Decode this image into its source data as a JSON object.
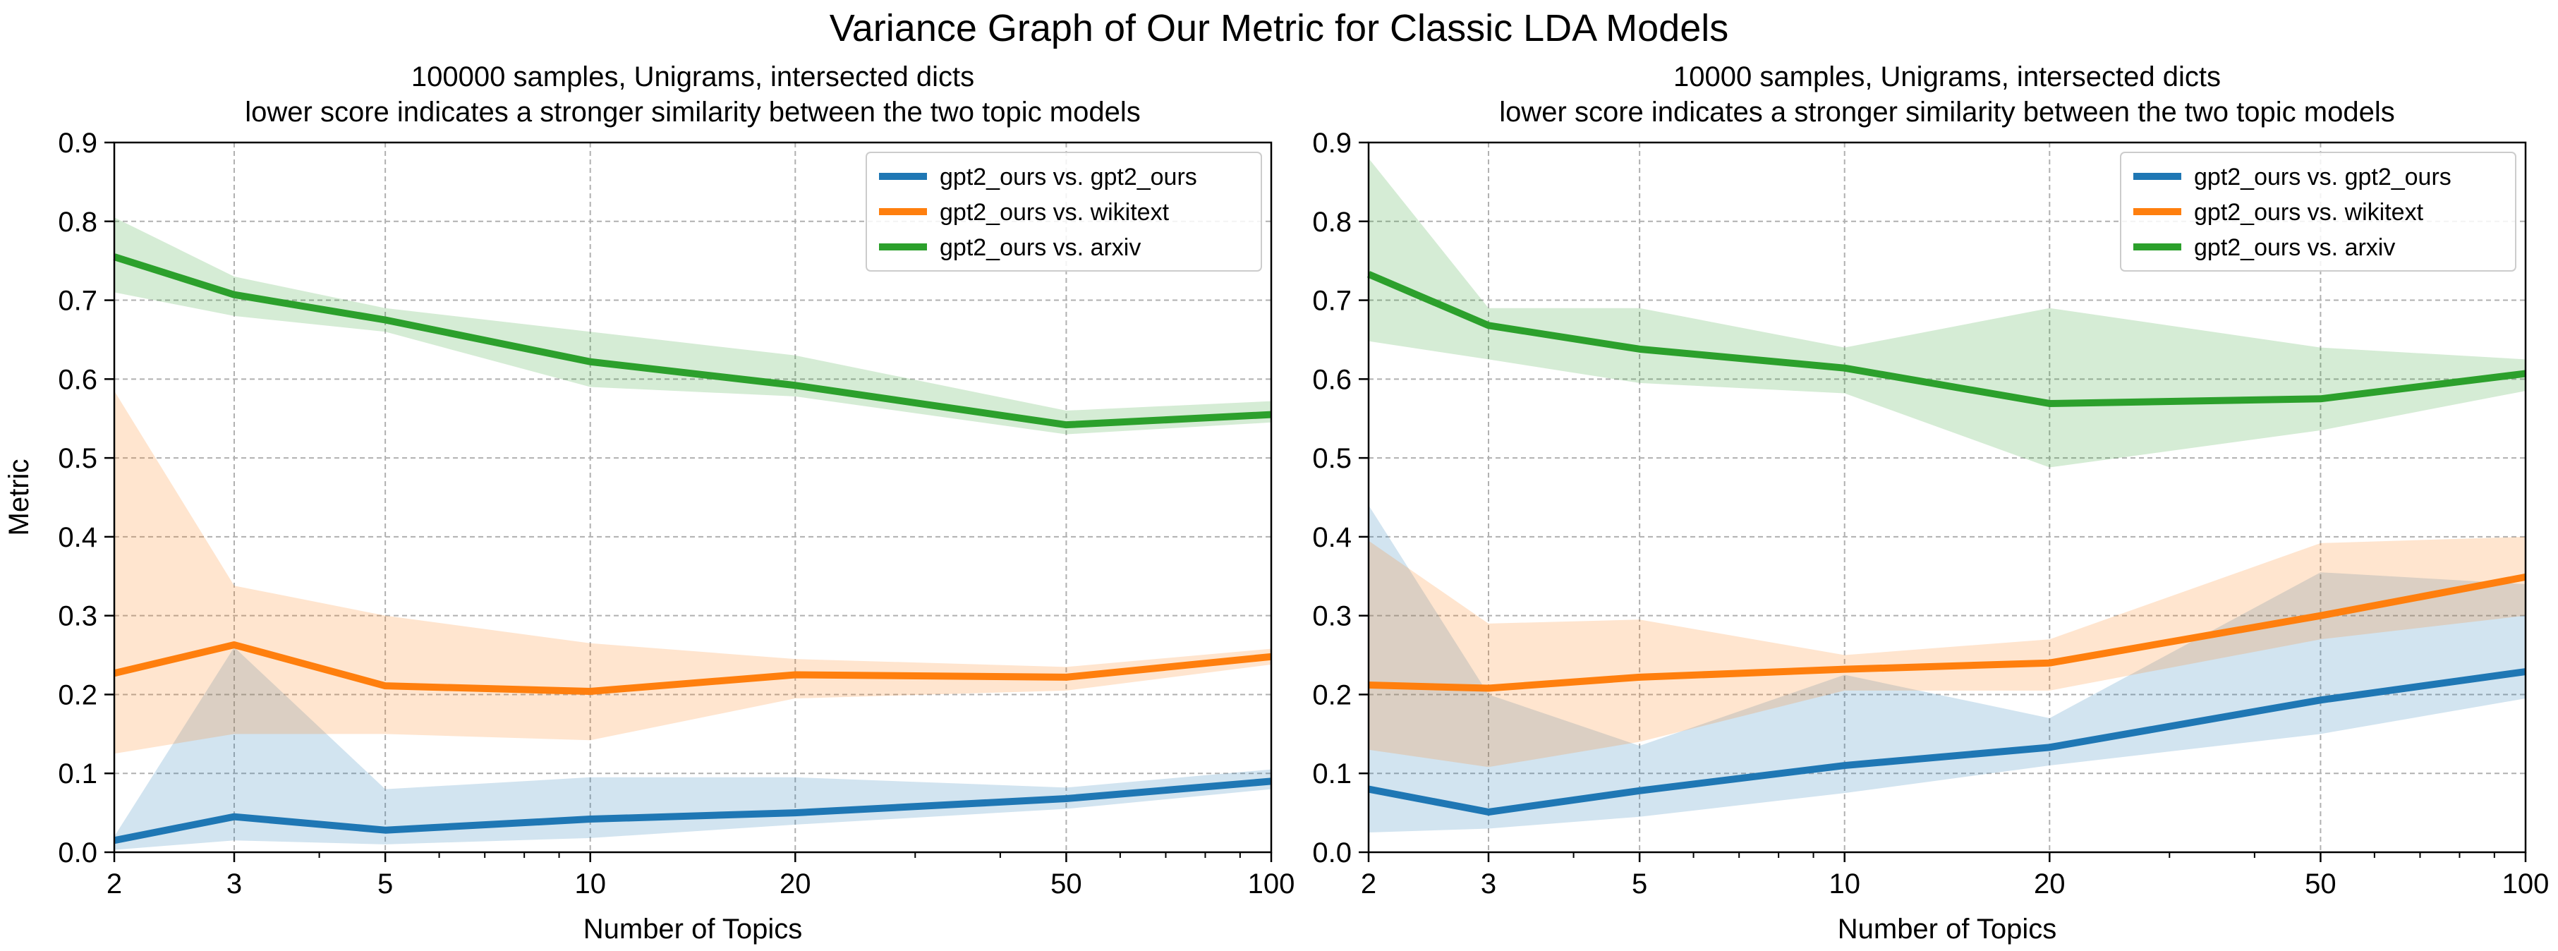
{
  "figure": {
    "title": "Variance Graph of Our Metric for Classic LDA Models"
  },
  "colors": {
    "blue": "#1f77b4",
    "orange": "#ff7f0e",
    "green": "#2ca02c",
    "grid": "#b0b0b0",
    "axes": "#000000"
  },
  "chart_data": [
    {
      "type": "line",
      "title": "100000 samples, Unigrams, intersected dicts",
      "subtitle": "lower score indicates a stronger similarity between the two topic models",
      "xlabel": "Number of Topics",
      "ylabel": "Metric",
      "xscale": "log",
      "xlim": [
        2,
        100
      ],
      "ylim": [
        0.0,
        0.9
      ],
      "grid": true,
      "legend": "top-right",
      "xticks": [
        2,
        3,
        5,
        10,
        20,
        50,
        100
      ],
      "xtick_labels": [
        "2",
        "3",
        "5",
        "10",
        "20",
        "50",
        "100"
      ],
      "yticks": [
        0.0,
        0.1,
        0.2,
        0.3,
        0.4,
        0.5,
        0.6,
        0.7,
        0.8,
        0.9
      ],
      "ytick_labels": [
        "0.0",
        "0.1",
        "0.2",
        "0.3",
        "0.4",
        "0.5",
        "0.6",
        "0.7",
        "0.8",
        "0.9"
      ],
      "x": [
        2,
        3,
        5,
        10,
        20,
        50,
        100
      ],
      "series": [
        {
          "name": "gpt2_ours vs. gpt2_ours",
          "color": "#1f77b4",
          "values": [
            0.015,
            0.045,
            0.028,
            0.042,
            0.05,
            0.068,
            0.09
          ],
          "lower": [
            0.003,
            0.015,
            0.01,
            0.018,
            0.035,
            0.055,
            0.08
          ],
          "upper": [
            0.02,
            0.26,
            0.08,
            0.095,
            0.095,
            0.082,
            0.105
          ]
        },
        {
          "name": "gpt2_ours vs. wikitext",
          "color": "#ff7f0e",
          "values": [
            0.227,
            0.263,
            0.211,
            0.204,
            0.225,
            0.222,
            0.248
          ],
          "lower": [
            0.125,
            0.15,
            0.15,
            0.142,
            0.195,
            0.205,
            0.238
          ],
          "upper": [
            0.585,
            0.338,
            0.3,
            0.265,
            0.245,
            0.235,
            0.258
          ]
        },
        {
          "name": "gpt2_ours vs. arxiv",
          "color": "#2ca02c",
          "values": [
            0.755,
            0.707,
            0.675,
            0.622,
            0.592,
            0.542,
            0.555
          ],
          "lower": [
            0.71,
            0.68,
            0.66,
            0.59,
            0.578,
            0.53,
            0.545
          ],
          "upper": [
            0.805,
            0.73,
            0.69,
            0.66,
            0.63,
            0.56,
            0.572
          ]
        }
      ]
    },
    {
      "type": "line",
      "title": "10000 samples, Unigrams, intersected dicts",
      "subtitle": "lower score indicates a stronger similarity between the two topic models",
      "xlabel": "Number of Topics",
      "ylabel": "",
      "xscale": "log",
      "xlim": [
        2,
        100
      ],
      "ylim": [
        0.0,
        0.9
      ],
      "grid": true,
      "legend": "top-right",
      "xticks": [
        2,
        3,
        5,
        10,
        20,
        50,
        100
      ],
      "xtick_labels": [
        "2",
        "3",
        "5",
        "10",
        "20",
        "50",
        "100"
      ],
      "yticks": [
        0.0,
        0.1,
        0.2,
        0.3,
        0.4,
        0.5,
        0.6,
        0.7,
        0.8,
        0.9
      ],
      "ytick_labels": [
        "0.0",
        "0.1",
        "0.2",
        "0.3",
        "0.4",
        "0.5",
        "0.6",
        "0.7",
        "0.8",
        "0.9"
      ],
      "x": [
        2,
        3,
        5,
        10,
        20,
        50,
        100
      ],
      "series": [
        {
          "name": "gpt2_ours vs. gpt2_ours",
          "color": "#1f77b4",
          "values": [
            0.08,
            0.051,
            0.078,
            0.11,
            0.133,
            0.193,
            0.229
          ],
          "lower": [
            0.025,
            0.03,
            0.045,
            0.075,
            0.11,
            0.15,
            0.195
          ],
          "upper": [
            0.44,
            0.2,
            0.135,
            0.225,
            0.17,
            0.355,
            0.34
          ]
        },
        {
          "name": "gpt2_ours vs. wikitext",
          "color": "#ff7f0e",
          "values": [
            0.212,
            0.208,
            0.222,
            0.232,
            0.24,
            0.3,
            0.349
          ],
          "lower": [
            0.13,
            0.108,
            0.14,
            0.205,
            0.205,
            0.27,
            0.3
          ],
          "upper": [
            0.395,
            0.29,
            0.295,
            0.25,
            0.27,
            0.392,
            0.4
          ]
        },
        {
          "name": "gpt2_ours vs. arxiv",
          "color": "#2ca02c",
          "values": [
            0.733,
            0.668,
            0.638,
            0.614,
            0.569,
            0.575,
            0.607
          ],
          "lower": [
            0.648,
            0.625,
            0.595,
            0.582,
            0.488,
            0.535,
            0.585
          ],
          "upper": [
            0.88,
            0.69,
            0.69,
            0.64,
            0.69,
            0.64,
            0.625
          ]
        }
      ]
    }
  ]
}
